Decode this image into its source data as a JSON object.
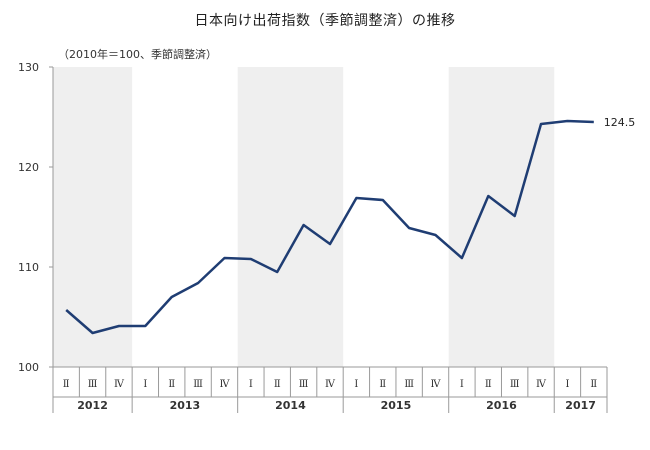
{
  "chart_data": {
    "type": "line",
    "title": "日本向け出荷指数（季節調整済）の推移",
    "unit_note": "（2010年＝100、季節調整済）",
    "ylim": [
      100,
      130
    ],
    "yticks": [
      "100",
      "110",
      "120",
      "130"
    ],
    "grid": false,
    "shaded_years": [
      "2012",
      "2014",
      "2016"
    ],
    "years": [
      {
        "label": "2012",
        "quarters": [
          "Ⅱ",
          "Ⅲ",
          "Ⅳ"
        ]
      },
      {
        "label": "2013",
        "quarters": [
          "Ⅰ",
          "Ⅱ",
          "Ⅲ",
          "Ⅳ"
        ]
      },
      {
        "label": "2014",
        "quarters": [
          "Ⅰ",
          "Ⅱ",
          "Ⅲ",
          "Ⅳ"
        ]
      },
      {
        "label": "2015",
        "quarters": [
          "Ⅰ",
          "Ⅱ",
          "Ⅲ",
          "Ⅳ"
        ]
      },
      {
        "label": "2016",
        "quarters": [
          "Ⅰ",
          "Ⅱ",
          "Ⅲ",
          "Ⅳ"
        ]
      },
      {
        "label": "2017",
        "quarters": [
          "Ⅰ",
          "Ⅱ"
        ]
      }
    ],
    "series": [
      {
        "values": [
          105.7,
          103.4,
          104.1,
          104.1,
          107.0,
          108.4,
          110.9,
          110.8,
          109.5,
          114.2,
          112.3,
          116.9,
          116.7,
          113.9,
          113.2,
          110.9,
          117.1,
          115.1,
          124.3,
          124.6,
          124.5
        ],
        "color": "#1f3d73"
      }
    ],
    "end_label": "124.5"
  },
  "colors": {
    "shade": "#efefef",
    "line": "#1f3d73",
    "axis": "#9a9a9a"
  }
}
